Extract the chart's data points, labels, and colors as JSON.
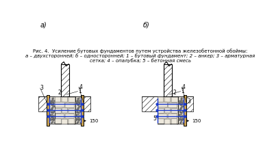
{
  "bg_color": "#ffffff",
  "line_color": "#000000",
  "blue_color": "#1a3acc",
  "wood_color": "#c8a050",
  "caption_line1": "Рис. 4.  Усиление бутовых фундаментов путем устройства железобетонной обоймы:",
  "caption_line2": "а – двухсторонней; б – односторонней; 1 – бутовый фундамент; 2 – анкер; 3 – арматурная",
  "caption_line3": "сетка; 4 – опалубка; 5 – бетонная смесь",
  "label_a": "а)",
  "label_b": "б)"
}
